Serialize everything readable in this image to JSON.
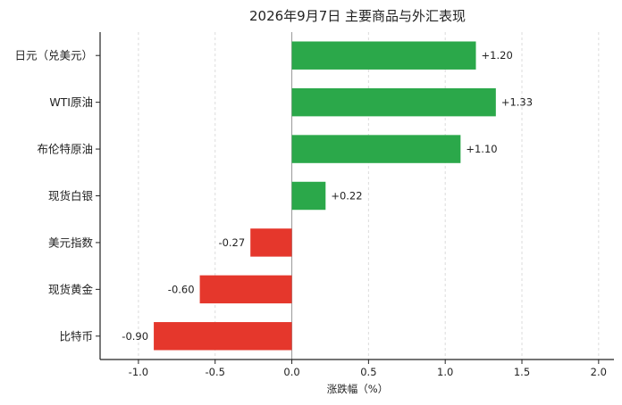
{
  "chart_data": {
    "type": "bar",
    "orientation": "horizontal",
    "title": "2026年9月7日 主要商品与外汇表现",
    "xlabel": "涨跌幅（%）",
    "ylabel": "",
    "categories": [
      "日元（兑美元）",
      "WTI原油",
      "布伦特原油",
      "现货白银",
      "美元指数",
      "现货黄金",
      "比特币"
    ],
    "values": [
      1.2,
      1.33,
      1.1,
      0.22,
      -0.27,
      -0.6,
      -0.9
    ],
    "value_labels": [
      "+1.20",
      "+1.33",
      "+1.10",
      "+0.22",
      "-0.27",
      "-0.60",
      "-0.90"
    ],
    "xlim": [
      -1.25,
      2.1
    ],
    "xticks": [
      -1.0,
      -0.5,
      0.0,
      0.5,
      1.0,
      1.5,
      2.0
    ],
    "xtick_labels": [
      "-1.0",
      "-0.5",
      "0.0",
      "0.5",
      "1.0",
      "1.5",
      "2.0"
    ],
    "grid": "vertical dashed",
    "legend": "none",
    "colors": {
      "positive": "#2ba84a",
      "negative": "#e5372c",
      "zero_line": "#999999",
      "axis": "#222222"
    }
  }
}
